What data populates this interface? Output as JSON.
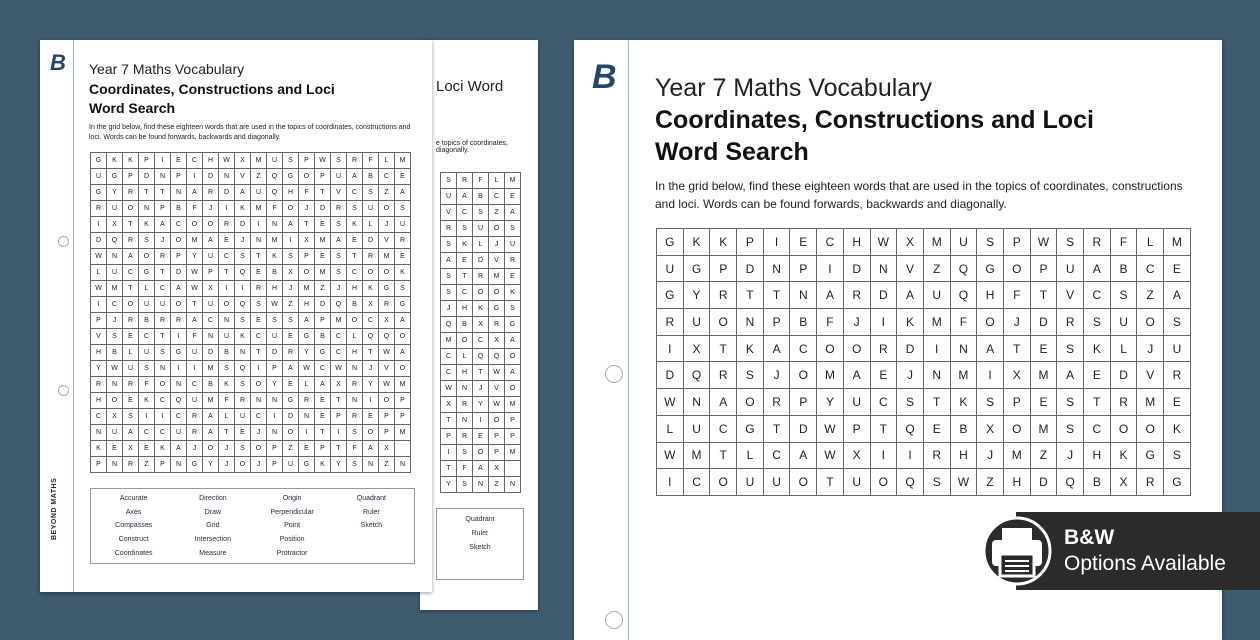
{
  "document": {
    "subtitle": "Year 7 Maths Vocabulary",
    "title_line1": "Coordinates, Constructions and Loci",
    "title_line2": "Word Search",
    "intro": "In the grid below, find these eighteen words that are used in the topics of coordinates, constructions and loci. Words can be found forwards, backwards and diagonally.",
    "brand": "BEYOND MATHS",
    "logo": "B",
    "back_title_fragment": "Loci Word",
    "back_intro_fragment": "e topics of coordinates, diagonally.",
    "grid": [
      "GKKPIECHWXMUSPWSRFLM",
      "UGPDNPIDNVZQGOPUABCE",
      "GYRTTNARDAUQHFTVCSZA",
      "RUONPBFJIKMFOJDRSUOS",
      "IXTKACOORDINATESKLJU",
      "DQRSJOMAEJNMIXMAEDVR",
      "WNAORPYUCSTKSPESTRME",
      "LUCGTDWPTQEBXOMSCOOK",
      "WMTLCAWXIIRHJMZJHKGS",
      "ICOUUOTUOQSWZHDQBXRG",
      "PJRBRRACNSESSAPMOCXA",
      "VSECTIFNUKCUEGBCLQQO",
      "HBLUSGUDBNTDRYGCHTWA",
      "YWUSNIIMSQIPAWCWNJVO",
      "RNRFONCBKSOYELAXRYWM",
      "HOEKCQUMFRNNGRETNIOP",
      "CXSIICRALUCIDNEPREPP",
      "NUACCURATEJNOITISOPM",
      "KEXEKAJOJSOPZEPTFAX",
      "PNRZPNGYJOJPUGKYSNZN"
    ],
    "words": [
      "Accurate",
      "Axes",
      "Compasses",
      "Construct",
      "Coordinates",
      "Direction",
      "Draw",
      "Grid",
      "Intersection",
      "Measure",
      "Origin",
      "Perpendicular",
      "Point",
      "Position",
      "Protractor",
      "Quadrant",
      "Ruler",
      "Sketch"
    ],
    "back_words": [
      "Quadrant",
      "Ruler",
      "Sketch"
    ]
  },
  "badge": {
    "line1": "B&W",
    "line2": "Options Available",
    "icon": "printer-icon"
  },
  "colors": {
    "background": "#3e5b70",
    "logo": "#24466a",
    "badge": "#2b2b2b"
  }
}
